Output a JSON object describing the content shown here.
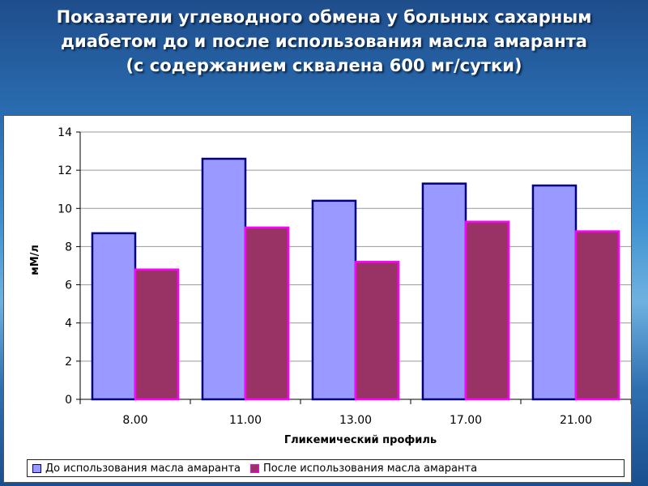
{
  "slide": {
    "title_lines": [
      "Показатели углеводного обмена у больных сахарным",
      "диабетом до и после использования масла амаранта",
      "(с содержанием сквалена 600 мг/сутки)"
    ]
  },
  "chart_data": {
    "type": "bar",
    "categories": [
      "8.00",
      "11.00",
      "13.00",
      "17.00",
      "21.00"
    ],
    "series": [
      {
        "name": "До использования масла амаранта",
        "values": [
          8.7,
          12.6,
          10.4,
          11.3,
          11.2
        ],
        "color": "#9999ff",
        "stroke": "#000080"
      },
      {
        "name": "После использования масла амаранта",
        "values": [
          6.8,
          9.0,
          7.2,
          9.3,
          8.8
        ],
        "color": "#993366",
        "stroke": "#ff00ff"
      }
    ],
    "xlabel": "Гликемический профиль",
    "ylabel": "мМ/л",
    "ylim": [
      0,
      14
    ],
    "yticks": [
      "0",
      "2",
      "4",
      "6",
      "8",
      "10",
      "12",
      "14"
    ],
    "grid": true,
    "legend_position": "bottom"
  }
}
